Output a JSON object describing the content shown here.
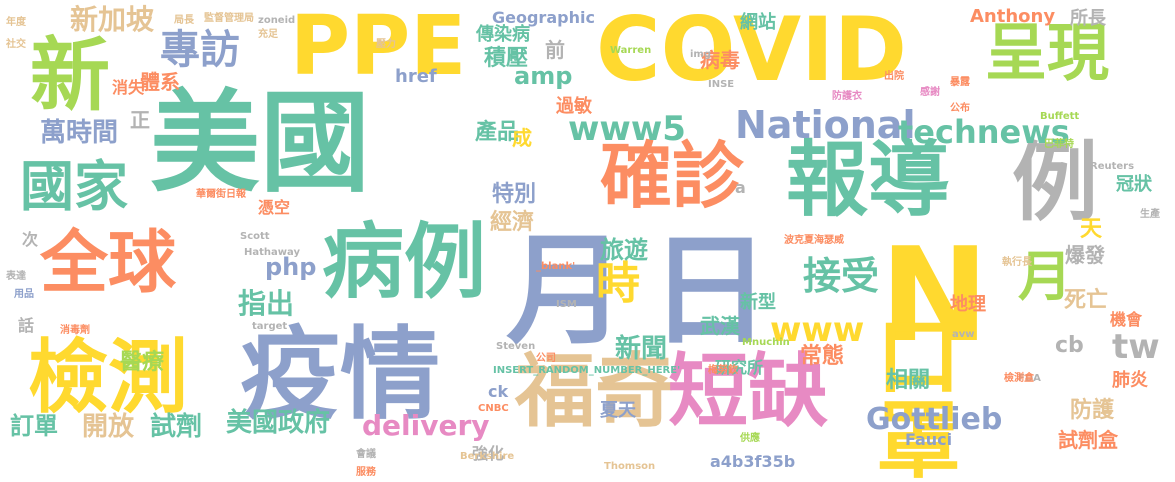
{
  "words": [
    {
      "text": "美國",
      "color": "#66c2a5"
    },
    {
      "text": "COVID",
      "color": "#ffd92f"
    },
    {
      "text": "PPE",
      "color": "#ffd92f"
    },
    {
      "text": "疫情",
      "color": "#8da0cb"
    },
    {
      "text": "檢測",
      "color": "#ffd92f"
    },
    {
      "text": "報導",
      "color": "#66c2a5"
    },
    {
      "text": "確診",
      "color": "#fc8d62"
    },
    {
      "text": "全球",
      "color": "#fc8d62"
    },
    {
      "text": "病例",
      "color": "#66c2a5"
    },
    {
      "text": "月",
      "color": "#8da0cb"
    },
    {
      "text": "日",
      "color": "#8da0cb"
    },
    {
      "text": "N",
      "color": "#ffd92f"
    },
    {
      "text": "口罩",
      "color": "#ffd92f"
    },
    {
      "text": "福奇",
      "color": "#e5c494"
    },
    {
      "text": "短缺",
      "color": "#e78ac3"
    },
    {
      "text": "呈現",
      "color": "#a6d854"
    },
    {
      "text": "國家",
      "color": "#66c2a5"
    },
    {
      "text": "例",
      "color": "#b3b3b3"
    },
    {
      "text": "新",
      "color": "#a6d854"
    },
    {
      "text": "專訪",
      "color": "#8da0cb"
    },
    {
      "text": "National",
      "color": "#8da0cb"
    },
    {
      "text": "technews",
      "color": "#66c2a5"
    },
    {
      "text": "www5",
      "color": "#66c2a5"
    },
    {
      "text": "時",
      "color": "#ffd92f"
    },
    {
      "text": "接受",
      "color": "#66c2a5"
    },
    {
      "text": "月",
      "color": "#a6d854"
    },
    {
      "text": "www",
      "color": "#ffd92f"
    },
    {
      "text": "Gottlieb",
      "color": "#8da0cb"
    },
    {
      "text": "tw",
      "color": "#b3b3b3"
    },
    {
      "text": "新加坡",
      "color": "#e5c494"
    },
    {
      "text": "萬時間",
      "color": "#8da0cb"
    },
    {
      "text": "php",
      "color": "#8da0cb"
    },
    {
      "text": "指出",
      "color": "#66c2a5"
    },
    {
      "text": "美國政府",
      "color": "#66c2a5"
    },
    {
      "text": "delivery",
      "color": "#e78ac3"
    },
    {
      "text": "試劑",
      "color": "#66c2a5"
    },
    {
      "text": "開放",
      "color": "#e5c494"
    },
    {
      "text": "訂單",
      "color": "#66c2a5"
    },
    {
      "text": "醫療",
      "color": "#a6d854"
    },
    {
      "text": "新聞",
      "color": "#66c2a5"
    },
    {
      "text": "旅遊",
      "color": "#66c2a5"
    },
    {
      "text": "經濟",
      "color": "#e5c494"
    },
    {
      "text": "特別",
      "color": "#8da0cb"
    },
    {
      "text": "產品",
      "color": "#66c2a5"
    },
    {
      "text": "amp",
      "color": "#66c2a5"
    },
    {
      "text": "傳染病",
      "color": "#66c2a5"
    },
    {
      "text": "積壓",
      "color": "#66c2a5"
    },
    {
      "text": "病毒",
      "color": "#fc8d62"
    },
    {
      "text": "Geographic",
      "color": "#8da0cb"
    },
    {
      "text": "網站",
      "color": "#66c2a5"
    },
    {
      "text": "Anthony",
      "color": "#fc8d62"
    },
    {
      "text": "所長",
      "color": "#b3b3b3"
    },
    {
      "text": "常態",
      "color": "#fc8d62"
    },
    {
      "text": "相關",
      "color": "#66c2a5"
    },
    {
      "text": "武漢",
      "color": "#66c2a5"
    },
    {
      "text": "研究所",
      "color": "#66c2a5"
    },
    {
      "text": "夏天",
      "color": "#8da0cb"
    },
    {
      "text": "新型",
      "color": "#66c2a5"
    },
    {
      "text": "地理",
      "color": "#fc8d62"
    },
    {
      "text": "死亡",
      "color": "#e5c494"
    },
    {
      "text": "爆發",
      "color": "#b3b3b3"
    },
    {
      "text": "天",
      "color": "#ffd92f"
    },
    {
      "text": "冠狀",
      "color": "#66c2a5"
    },
    {
      "text": "肺炎",
      "color": "#fc8d62"
    },
    {
      "text": "防護",
      "color": "#e5c494"
    },
    {
      "text": "試劑盒",
      "color": "#fc8d62"
    },
    {
      "text": "機會",
      "color": "#fc8d62"
    },
    {
      "text": "cb",
      "color": "#b3b3b3"
    },
    {
      "text": "Fauci",
      "color": "#8da0cb"
    },
    {
      "text": "a4b3f35b",
      "color": "#8da0cb"
    },
    {
      "text": "強化",
      "color": "#b3b3b3"
    },
    {
      "text": "ck",
      "color": "#8da0cb"
    },
    {
      "text": "過敏",
      "color": "#fc8d62"
    },
    {
      "text": "成",
      "color": "#ffd92f"
    },
    {
      "text": "前",
      "color": "#b3b3b3"
    },
    {
      "text": "href",
      "color": "#8da0cb"
    },
    {
      "text": "體系",
      "color": "#fc8d62"
    },
    {
      "text": "消失",
      "color": "#fc8d62"
    },
    {
      "text": "憑空",
      "color": "#fc8d62"
    },
    {
      "text": "正",
      "color": "#b3b3b3"
    },
    {
      "text": "次",
      "color": "#b3b3b3"
    },
    {
      "text": "話",
      "color": "#b3b3b3"
    },
    {
      "text": "a",
      "color": "#b3b3b3"
    },
    {
      "text": "年度",
      "color": "#e5c494"
    },
    {
      "text": "局長",
      "color": "#e5c494"
    },
    {
      "text": "監督管理局",
      "color": "#e5c494"
    },
    {
      "text": "zoneid",
      "color": "#b3b3b3"
    },
    {
      "text": "社交",
      "color": "#e5c494"
    },
    {
      "text": "充足",
      "color": "#e5c494"
    },
    {
      "text": "壓力",
      "color": "#e5c494"
    },
    {
      "text": "Warren",
      "color": "#a6d854"
    },
    {
      "text": "img",
      "color": "#b3b3b3"
    },
    {
      "text": "暴露",
      "color": "#fc8d62"
    },
    {
      "text": "Buffett",
      "color": "#a6d854"
    },
    {
      "text": "巴菲特",
      "color": "#a6d854"
    },
    {
      "text": "Reuters",
      "color": "#b3b3b3"
    },
    {
      "text": "Berkshire",
      "color": "#e5c494"
    },
    {
      "text": "Hathaway",
      "color": "#b3b3b3"
    },
    {
      "text": "Scott",
      "color": "#b3b3b3"
    },
    {
      "text": "華爾街日報",
      "color": "#fc8d62"
    },
    {
      "text": "波克夏海瑟威",
      "color": "#fc8d62"
    },
    {
      "text": "_blank'",
      "color": "#fc8d62"
    },
    {
      "text": "ISM",
      "color": "#b3b3b3"
    },
    {
      "text": "target",
      "color": "#b3b3b3"
    },
    {
      "text": "Steven",
      "color": "#b3b3b3"
    },
    {
      "text": "Mnuchin",
      "color": "#a6d854"
    },
    {
      "text": "INSERT_RANDOM_NUMBER_HERE'",
      "color": "#66c2a5"
    },
    {
      "text": "CNBC",
      "color": "#fc8d62"
    },
    {
      "text": "Thomson",
      "color": "#e5c494"
    },
    {
      "text": "執行長",
      "color": "#e5c494"
    },
    {
      "text": "FDA",
      "color": "#b3b3b3"
    },
    {
      "text": "avw",
      "color": "#b3b3b3"
    },
    {
      "text": "INSE",
      "color": "#b3b3b3"
    },
    {
      "text": "防護衣",
      "color": "#e78ac3"
    },
    {
      "text": "感謝",
      "color": "#e78ac3"
    },
    {
      "text": "公布",
      "color": "#fc8d62"
    },
    {
      "text": "消毒劑",
      "color": "#fc8d62"
    },
    {
      "text": "出院",
      "color": "#fc8d62"
    },
    {
      "text": "用品",
      "color": "#8da0cb"
    },
    {
      "text": "生產",
      "color": "#b3b3b3"
    },
    {
      "text": "公司",
      "color": "#fc8d62"
    },
    {
      "text": "供應",
      "color": "#a6d854"
    },
    {
      "text": "梅努欽",
      "color": "#fc8d62"
    },
    {
      "text": "檢測盒",
      "color": "#fc8d62"
    },
    {
      "text": "表達",
      "color": "#b3b3b3"
    },
    {
      "text": "會議",
      "color": "#b3b3b3"
    },
    {
      "text": "服務",
      "color": "#fc8d62"
    }
  ]
}
